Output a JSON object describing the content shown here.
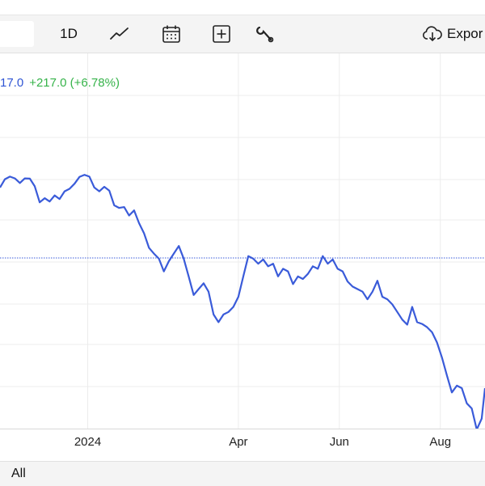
{
  "toolbar": {
    "interval_label": "1D",
    "chart_type_icon": "line-chart-icon",
    "calendar_icon": "calendar-icon",
    "add_icon": "plus-square-icon",
    "tools_icon": "wrench-icon",
    "export_icon": "cloud-download-icon",
    "export_label": "Expor"
  },
  "quote": {
    "last_partial": "17.0",
    "change": "+217.0 (+6.78%)",
    "last_color": "#2f55d4",
    "change_color": "#36b34a"
  },
  "x_axis": {
    "labels": [
      "2024",
      "Apr",
      "Jun",
      "Aug"
    ]
  },
  "range_selector": {
    "all_label": "All"
  },
  "chart_data": {
    "type": "line",
    "title": "",
    "xlabel": "",
    "ylabel": "",
    "x_range": [
      "2023-11-09",
      "2024-08-28"
    ],
    "y_range_relative": [
      0,
      100
    ],
    "grid": true,
    "line_color": "#3a5bd9",
    "reference_line_style": "dotted",
    "series": [
      {
        "points": [
          [
            "2023-11-09",
            79.0
          ],
          [
            "2023-11-12",
            82.3
          ],
          [
            "2023-11-15",
            83.3
          ],
          [
            "2023-11-18",
            82.6
          ],
          [
            "2023-11-21",
            80.8
          ],
          [
            "2023-11-24",
            82.6
          ],
          [
            "2023-11-27",
            82.5
          ],
          [
            "2023-11-30",
            79.5
          ],
          [
            "2023-12-03",
            73.2
          ],
          [
            "2023-12-06",
            74.8
          ],
          [
            "2023-12-09",
            73.5
          ],
          [
            "2023-12-12",
            75.9
          ],
          [
            "2023-12-15",
            74.5
          ],
          [
            "2023-12-18",
            77.5
          ],
          [
            "2023-12-21",
            78.5
          ],
          [
            "2023-12-24",
            80.5
          ],
          [
            "2023-12-27",
            83.2
          ],
          [
            "2023-12-30",
            84.0
          ],
          [
            "2024-01-02",
            83.3
          ],
          [
            "2024-01-05",
            79.0
          ],
          [
            "2024-01-08",
            77.5
          ],
          [
            "2024-01-11",
            79.3
          ],
          [
            "2024-01-14",
            77.8
          ],
          [
            "2024-01-17",
            72.0
          ],
          [
            "2024-01-20",
            71.0
          ],
          [
            "2024-01-23",
            71.3
          ],
          [
            "2024-01-26",
            68.0
          ],
          [
            "2024-01-29",
            70.0
          ],
          [
            "2024-02-01",
            65.0
          ],
          [
            "2024-02-04",
            61.0
          ],
          [
            "2024-02-07",
            55.3
          ],
          [
            "2024-02-10",
            53.0
          ],
          [
            "2024-02-13",
            51.0
          ],
          [
            "2024-02-16",
            46.0
          ],
          [
            "2024-02-19",
            50.0
          ],
          [
            "2024-02-22",
            53.0
          ],
          [
            "2024-02-25",
            56.0
          ],
          [
            "2024-02-28",
            51.0
          ],
          [
            "2024-03-02",
            44.0
          ],
          [
            "2024-03-05",
            36.7
          ],
          [
            "2024-03-08",
            39.0
          ],
          [
            "2024-03-11",
            41.3
          ],
          [
            "2024-03-14",
            38.0
          ],
          [
            "2024-03-17",
            29.0
          ],
          [
            "2024-03-20",
            26.0
          ],
          [
            "2024-03-23",
            29.0
          ],
          [
            "2024-03-26",
            30.0
          ],
          [
            "2024-03-29",
            32.0
          ],
          [
            "2024-04-01",
            36.0
          ],
          [
            "2024-04-04",
            44.0
          ],
          [
            "2024-04-07",
            52.0
          ],
          [
            "2024-04-10",
            51.0
          ],
          [
            "2024-04-13",
            49.0
          ],
          [
            "2024-04-16",
            50.7
          ],
          [
            "2024-04-19",
            48.0
          ],
          [
            "2024-04-22",
            49.0
          ],
          [
            "2024-04-25",
            44.0
          ],
          [
            "2024-04-28",
            47.0
          ],
          [
            "2024-05-01",
            46.0
          ],
          [
            "2024-05-04",
            41.0
          ],
          [
            "2024-05-07",
            44.0
          ],
          [
            "2024-05-10",
            43.0
          ],
          [
            "2024-05-13",
            45.0
          ],
          [
            "2024-05-16",
            48.0
          ],
          [
            "2024-05-19",
            47.0
          ],
          [
            "2024-05-22",
            52.0
          ],
          [
            "2024-05-25",
            49.0
          ],
          [
            "2024-05-28",
            50.7
          ],
          [
            "2024-05-31",
            47.0
          ],
          [
            "2024-06-03",
            46.0
          ],
          [
            "2024-06-06",
            42.0
          ],
          [
            "2024-06-09",
            40.0
          ],
          [
            "2024-06-12",
            39.0
          ],
          [
            "2024-06-15",
            38.0
          ],
          [
            "2024-06-18",
            35.0
          ],
          [
            "2024-06-21",
            38.0
          ],
          [
            "2024-06-24",
            42.3
          ],
          [
            "2024-06-27",
            36.0
          ],
          [
            "2024-06-30",
            35.0
          ],
          [
            "2024-07-03",
            33.0
          ],
          [
            "2024-07-06",
            30.0
          ],
          [
            "2024-07-09",
            27.0
          ],
          [
            "2024-07-12",
            25.0
          ],
          [
            "2024-07-15",
            32.0
          ],
          [
            "2024-07-18",
            26.0
          ],
          [
            "2024-07-21",
            25.3
          ],
          [
            "2024-07-24",
            24.0
          ],
          [
            "2024-07-27",
            22.0
          ],
          [
            "2024-07-30",
            18.0
          ],
          [
            "2024-08-02",
            12.0
          ],
          [
            "2024-08-05",
            5.0
          ],
          [
            "2024-08-08",
            -1.7
          ],
          [
            "2024-08-11",
            1.0
          ],
          [
            "2024-08-14",
            0.0
          ],
          [
            "2024-08-17",
            -6.0
          ],
          [
            "2024-08-20",
            -8.0
          ],
          [
            "2024-08-23",
            -16.3
          ],
          [
            "2024-08-26",
            -12.0
          ],
          [
            "2024-08-28",
            0.0
          ]
        ]
      }
    ]
  }
}
